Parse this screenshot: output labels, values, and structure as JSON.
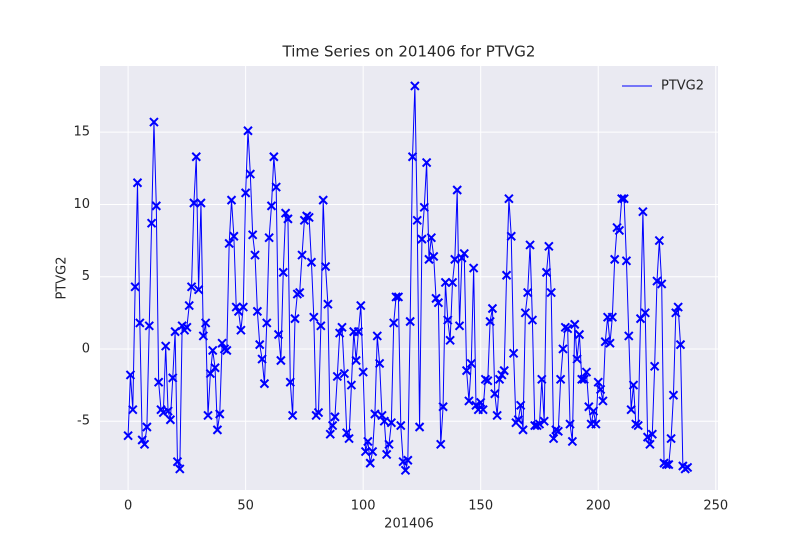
{
  "chart_data": {
    "type": "line",
    "title": "Time Series on 201406 for PTVG2",
    "xlabel": "201406",
    "ylabel": "PTVG2",
    "x": [
      0,
      1,
      2,
      3,
      4,
      5,
      6,
      7,
      8,
      9,
      10,
      11,
      12,
      13,
      14,
      15,
      16,
      17,
      18,
      19,
      20,
      21,
      22,
      23,
      24,
      25,
      26,
      27,
      28,
      29,
      30,
      31,
      32,
      33,
      34,
      35,
      36,
      37,
      38,
      39,
      40,
      41,
      42,
      43,
      44,
      45,
      46,
      47,
      48,
      49,
      50,
      51,
      52,
      53,
      54,
      55,
      56,
      57,
      58,
      59,
      60,
      61,
      62,
      63,
      64,
      65,
      66,
      67,
      68,
      69,
      70,
      71,
      72,
      73,
      74,
      75,
      76,
      77,
      78,
      79,
      80,
      81,
      82,
      83,
      84,
      85,
      86,
      87,
      88,
      89,
      90,
      91,
      92,
      93,
      94,
      95,
      96,
      97,
      98,
      99,
      100,
      101,
      102,
      103,
      104,
      105,
      106,
      107,
      108,
      109,
      110,
      111,
      112,
      113,
      114,
      115,
      116,
      117,
      118,
      119,
      120,
      121,
      122,
      123,
      124,
      125,
      126,
      127,
      128,
      129,
      130,
      131,
      132,
      133,
      134,
      135,
      136,
      137,
      138,
      139,
      140,
      141,
      142,
      143,
      144,
      145,
      146,
      147,
      148,
      149,
      150,
      151,
      152,
      153,
      154,
      155,
      156,
      157,
      158,
      159,
      160,
      161,
      162,
      163,
      164,
      165,
      166,
      167,
      168,
      169,
      170,
      171,
      172,
      173,
      174,
      175,
      176,
      177,
      178,
      179,
      180,
      181,
      182,
      183,
      184,
      185,
      186,
      187,
      188,
      189,
      190,
      191,
      192,
      193,
      194,
      195,
      196,
      197,
      198,
      199,
      200,
      201,
      202,
      203,
      204,
      205,
      206,
      207,
      208,
      209,
      210,
      211,
      212,
      213,
      214,
      215,
      216,
      217,
      218,
      219,
      220,
      221,
      222,
      223,
      224,
      225,
      226,
      227,
      228,
      229,
      230,
      231,
      232,
      233,
      234,
      235,
      236,
      237,
      238
    ],
    "series": [
      {
        "name": "PTVG2",
        "color": "#0000ff",
        "values": [
          -6.0,
          -1.8,
          -4.2,
          4.3,
          11.5,
          1.8,
          -6.3,
          -6.6,
          -5.4,
          1.6,
          8.7,
          15.7,
          9.9,
          -2.3,
          -4.2,
          -4.4,
          0.2,
          -4.3,
          -4.9,
          -2.0,
          1.2,
          -7.8,
          -8.3,
          1.6,
          1.3,
          1.5,
          3.0,
          4.3,
          10.1,
          13.3,
          4.1,
          10.1,
          0.9,
          1.8,
          -4.6,
          -1.7,
          -0.1,
          -1.3,
          -5.6,
          -4.5,
          0.4,
          0.0,
          -0.1,
          7.3,
          10.3,
          7.8,
          2.9,
          2.6,
          1.3,
          2.9,
          10.8,
          15.1,
          12.1,
          7.9,
          6.5,
          2.6,
          0.3,
          -0.7,
          -2.4,
          1.8,
          7.7,
          9.9,
          13.3,
          11.2,
          1.0,
          -0.8,
          5.3,
          9.4,
          9.0,
          -2.3,
          -4.6,
          2.1,
          3.8,
          3.9,
          6.5,
          8.9,
          9.2,
          9.1,
          6.0,
          2.2,
          -4.6,
          -4.4,
          1.6,
          10.3,
          5.7,
          3.1,
          -5.9,
          -5.3,
          -4.7,
          -1.9,
          1.1,
          1.5,
          -1.7,
          -5.8,
          -6.2,
          -2.5,
          1.2,
          -0.8,
          1.2,
          3.0,
          -1.6,
          -7.1,
          -6.4,
          -7.9,
          -7.1,
          -4.5,
          0.9,
          -1.0,
          -4.6,
          -5.0,
          -7.3,
          -6.6,
          -5.1,
          1.8,
          3.6,
          3.6,
          -5.3,
          -7.8,
          -8.4,
          -7.7,
          1.9,
          13.3,
          18.2,
          8.9,
          -5.4,
          7.6,
          9.8,
          12.9,
          6.2,
          7.7,
          6.4,
          3.5,
          3.2,
          -6.6,
          -4.0,
          4.6,
          2.0,
          0.6,
          4.6,
          6.2,
          11.0,
          1.6,
          6.3,
          6.6,
          -1.5,
          -3.6,
          -1.0,
          5.6,
          -3.9,
          -4.2,
          -3.7,
          -4.2,
          -2.1,
          -2.2,
          1.9,
          2.8,
          -3.1,
          -4.6,
          -2.1,
          -1.8,
          -1.5,
          5.1,
          10.4,
          7.8,
          -0.3,
          -5.1,
          -4.9,
          -3.9,
          -5.6,
          2.5,
          3.9,
          7.2,
          2.0,
          -5.3,
          -5.3,
          -5.2,
          -2.1,
          -5.0,
          5.3,
          7.1,
          3.9,
          -6.2,
          -5.6,
          -5.7,
          -2.1,
          0.0,
          1.5,
          1.4,
          -5.2,
          -6.4,
          1.7,
          -0.7,
          1.0,
          -2.1,
          -2.1,
          -1.6,
          -4.0,
          -5.2,
          -4.3,
          -5.2,
          -2.3,
          -2.8,
          -3.6,
          0.5,
          2.2,
          0.4,
          2.2,
          6.2,
          8.4,
          8.2,
          10.4,
          10.4,
          6.1,
          0.9,
          -4.2,
          -2.5,
          -5.2,
          -5.3,
          2.1,
          9.5,
          2.5,
          -6.1,
          -6.6,
          -5.9,
          -1.2,
          4.7,
          7.5,
          4.5,
          -7.9,
          -8.0,
          -8.0,
          -6.2,
          -3.2,
          2.5,
          2.9,
          0.3,
          -8.1,
          -8.3,
          -8.2
        ]
      }
    ],
    "xlim": [
      -11.95,
      250.95
    ],
    "ylim": [
      -9.76,
      19.58
    ],
    "xticks": [
      0,
      50,
      100,
      150,
      200,
      250
    ],
    "yticks": [
      -5,
      0,
      5,
      10,
      15
    ],
    "grid": true,
    "legend": "upper right",
    "marker": "x"
  }
}
